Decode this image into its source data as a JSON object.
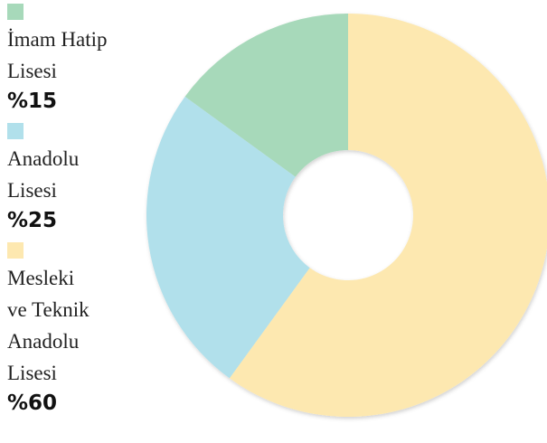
{
  "chart_data": {
    "type": "donut",
    "categories": [
      "İmam Hatip\nLisesi",
      "Anadolu\nLisesi",
      "Mesleki\nve Teknik\nAnadolu\nLisesi"
    ],
    "values": [
      15,
      25,
      60
    ],
    "value_labels": [
      "%15",
      "%25",
      "%60"
    ],
    "colors": [
      "#a7d9ba",
      "#b1e0eb",
      "#fde8b0"
    ],
    "legend": "left"
  }
}
